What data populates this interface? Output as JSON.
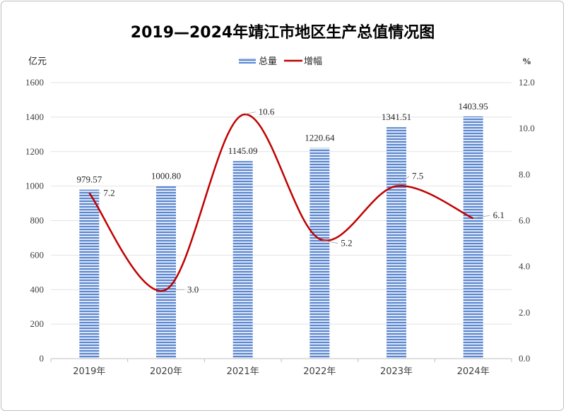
{
  "chart_data": {
    "type": "bar+line",
    "title": "2019—2024年靖江市地区生产总值情况图",
    "categories": [
      "2019年",
      "2020年",
      "2021年",
      "2022年",
      "2023年",
      "2024年"
    ],
    "series": [
      {
        "name": "总量",
        "type": "bar",
        "axis": "left",
        "values": [
          979.57,
          1000.8,
          1145.09,
          1220.64,
          1341.51,
          1403.95
        ],
        "labels": [
          "979.57",
          "1000.80",
          "1145.09",
          "1220.64",
          "1341.51",
          "1403.95"
        ],
        "color": "#4472c4"
      },
      {
        "name": "增幅",
        "type": "line",
        "axis": "right",
        "smooth": true,
        "values": [
          7.2,
          3.0,
          10.6,
          5.2,
          7.5,
          6.1
        ],
        "labels": [
          "7.2",
          "3.0",
          "10.6",
          "5.2",
          "7.5",
          "6.1"
        ],
        "color": "#c00000"
      }
    ],
    "ylabel_left": "亿元",
    "ylabel_right": "%",
    "ylim_left": [
      0,
      1600
    ],
    "ylim_right": [
      0,
      12
    ],
    "yticks_left": [
      "0",
      "200",
      "400",
      "600",
      "800",
      "1000",
      "1200",
      "1400",
      "1600"
    ],
    "yticks_right": [
      "0.0",
      "2.0",
      "4.0",
      "6.0",
      "8.0",
      "10.0",
      "12.0"
    ],
    "grid": true,
    "legend": "top-center"
  }
}
